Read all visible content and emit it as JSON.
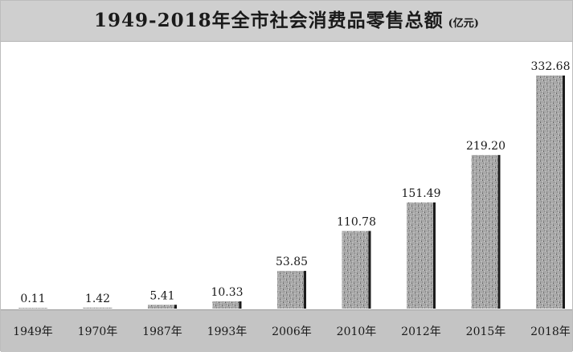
{
  "chart_data": {
    "type": "bar",
    "title": "1949-2018年全市社会消费品零售总额",
    "unit": "(亿元)",
    "categories": [
      "1949年",
      "1970年",
      "1987年",
      "1993年",
      "2006年",
      "2010年",
      "2012年",
      "2015年",
      "2018年"
    ],
    "values": [
      0.11,
      1.42,
      5.41,
      10.33,
      53.85,
      110.78,
      151.49,
      219.2,
      332.68
    ],
    "value_labels": [
      "0.11",
      "1.42",
      "5.41",
      "10.33",
      "53.85",
      "110.78",
      "151.49",
      "219.20",
      "332.68"
    ],
    "ylim": [
      0,
      332.68
    ],
    "grid": false,
    "legend": "none",
    "colors": {
      "bar_fill": "#a9a9a9",
      "bar_edge": "#1c1c1c",
      "title_band": "#cfcfcf",
      "axis_band": "#c4c4c4",
      "text": "#1a1a1a"
    }
  }
}
